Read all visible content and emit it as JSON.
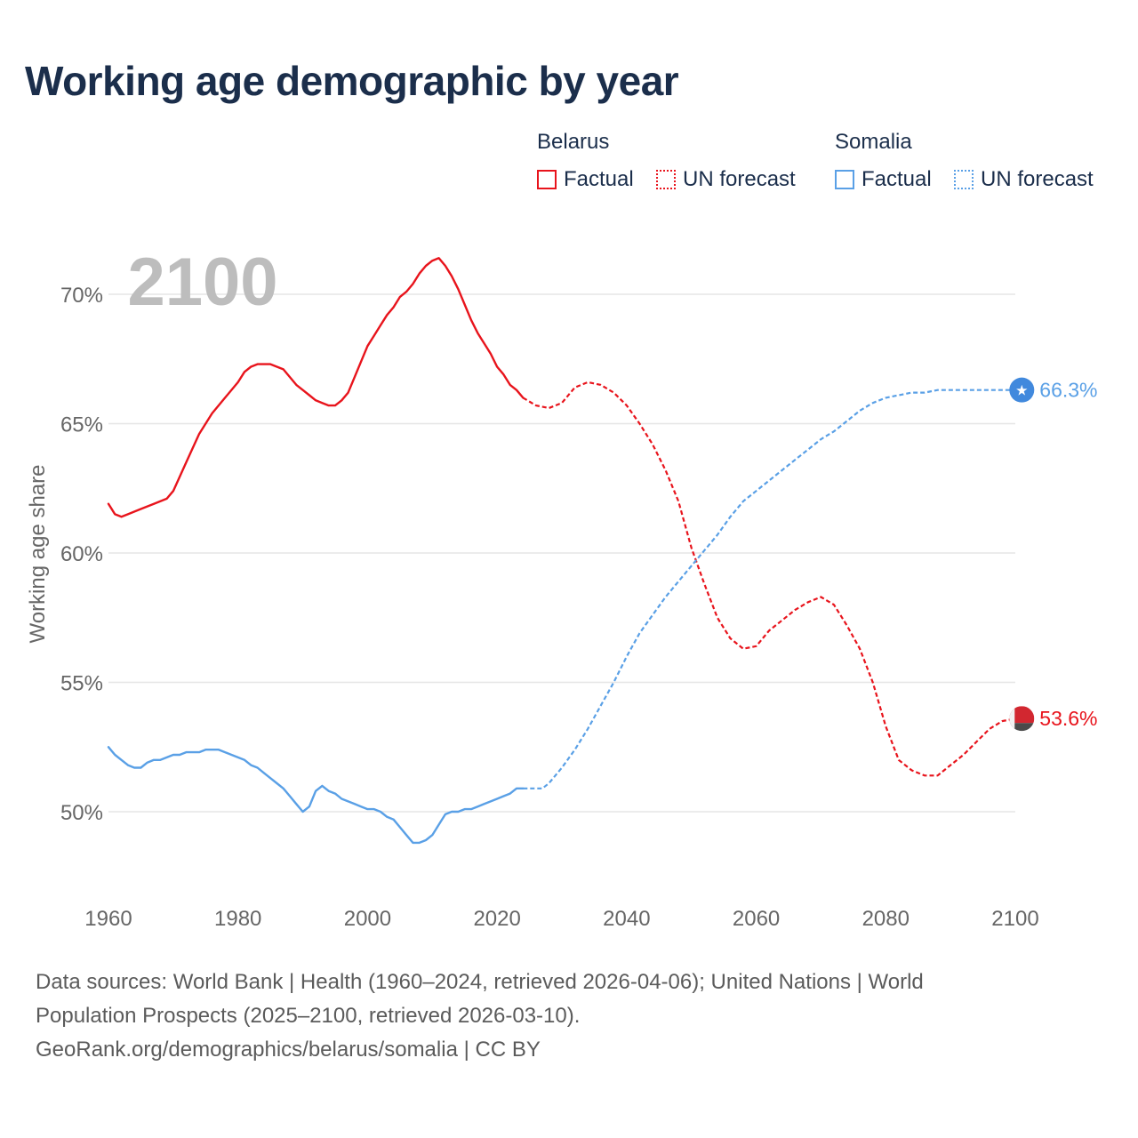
{
  "title": "Working age demographic by year",
  "legend": {
    "groups": [
      {
        "name": "Belarus",
        "color": "#e8141c",
        "factual_label": "Factual",
        "forecast_label": "UN forecast"
      },
      {
        "name": "Somalia",
        "color": "#5aa0e6",
        "factual_label": "Factual",
        "forecast_label": "UN forecast"
      }
    ]
  },
  "footer": {
    "line1": "Data sources: World Bank | Health (1960–2024, retrieved 2026-04-06); United Nations | World",
    "line2": "Population Prospects (2025–2100, retrieved 2026-03-10).",
    "line3": "GeoRank.org/demographics/belarus/somalia | CC BY"
  },
  "colors": {
    "title": "#1b2e4b",
    "belarus": "#e8141c",
    "somalia": "#5aa0e6",
    "year_watermark": "#bdbdbd",
    "grid": "#e6e6e6",
    "axis_text": "#666666"
  },
  "chart_data": {
    "type": "line",
    "title": "Working age demographic by year",
    "ylabel": "Working age share",
    "xlabel": "",
    "year_label": "2100",
    "xlim": [
      1960,
      2100
    ],
    "ylim": [
      47.5,
      72.5
    ],
    "x_ticks": [
      1960,
      1980,
      2000,
      2020,
      2040,
      2060,
      2080,
      2100
    ],
    "y_ticks": [
      50,
      55,
      60,
      65,
      70
    ],
    "y_tick_labels": [
      "50%",
      "55%",
      "60%",
      "65%",
      "70%"
    ],
    "grid": true,
    "series": [
      {
        "name": "Belarus",
        "color": "#e8141c",
        "end_label": "53.6%",
        "factual": {
          "x": [
            1960,
            1961,
            1962,
            1963,
            1965,
            1967,
            1969,
            1970,
            1972,
            1974,
            1976,
            1978,
            1980,
            1981,
            1982,
            1983,
            1984,
            1985,
            1986,
            1987,
            1988,
            1989,
            1990,
            1991,
            1992,
            1993,
            1994,
            1995,
            1996,
            1997,
            1998,
            1999,
            2000,
            2001,
            2002,
            2003,
            2004,
            2005,
            2006,
            2007,
            2008,
            2009,
            2010,
            2011,
            2012,
            2013,
            2014,
            2015,
            2016,
            2017,
            2018,
            2019,
            2020,
            2021,
            2022,
            2023,
            2024
          ],
          "y": [
            61.9,
            61.5,
            61.4,
            61.5,
            61.7,
            61.9,
            62.1,
            62.4,
            63.5,
            64.6,
            65.4,
            66.0,
            66.6,
            67.0,
            67.2,
            67.3,
            67.3,
            67.3,
            67.2,
            67.1,
            66.8,
            66.5,
            66.3,
            66.1,
            65.9,
            65.8,
            65.7,
            65.7,
            65.9,
            66.2,
            66.8,
            67.4,
            68.0,
            68.4,
            68.8,
            69.2,
            69.5,
            69.9,
            70.1,
            70.4,
            70.8,
            71.1,
            71.3,
            71.4,
            71.1,
            70.7,
            70.2,
            69.6,
            69.0,
            68.5,
            68.1,
            67.7,
            67.2,
            66.9,
            66.5,
            66.3,
            66.0
          ]
        },
        "forecast": {
          "x": [
            2024,
            2026,
            2028,
            2030,
            2032,
            2034,
            2036,
            2038,
            2040,
            2042,
            2044,
            2046,
            2048,
            2050,
            2052,
            2054,
            2056,
            2058,
            2060,
            2062,
            2064,
            2066,
            2068,
            2070,
            2072,
            2074,
            2076,
            2078,
            2080,
            2082,
            2084,
            2086,
            2088,
            2090,
            2092,
            2094,
            2096,
            2098,
            2100,
            2101
          ],
          "y": [
            66.0,
            65.7,
            65.6,
            65.8,
            66.4,
            66.6,
            66.5,
            66.2,
            65.7,
            65.0,
            64.2,
            63.2,
            62.0,
            60.2,
            58.8,
            57.5,
            56.7,
            56.3,
            56.4,
            57.0,
            57.4,
            57.8,
            58.1,
            58.3,
            58.0,
            57.2,
            56.3,
            55.0,
            53.3,
            52.0,
            51.6,
            51.4,
            51.4,
            51.8,
            52.2,
            52.7,
            53.2,
            53.5,
            53.6,
            53.6
          ]
        }
      },
      {
        "name": "Somalia",
        "color": "#5aa0e6",
        "end_label": "66.3%",
        "factual": {
          "x": [
            1960,
            1961,
            1962,
            1963,
            1964,
            1965,
            1966,
            1967,
            1968,
            1969,
            1970,
            1971,
            1972,
            1973,
            1974,
            1975,
            1976,
            1977,
            1978,
            1979,
            1980,
            1981,
            1982,
            1983,
            1984,
            1985,
            1986,
            1987,
            1988,
            1989,
            1990,
            1991,
            1992,
            1993,
            1994,
            1995,
            1996,
            1997,
            1998,
            1999,
            2000,
            2001,
            2002,
            2003,
            2004,
            2005,
            2006,
            2007,
            2008,
            2009,
            2010,
            2011,
            2012,
            2013,
            2014,
            2015,
            2016,
            2017,
            2018,
            2019,
            2020,
            2021,
            2022,
            2023,
            2024
          ],
          "y": [
            52.5,
            52.2,
            52.0,
            51.8,
            51.7,
            51.7,
            51.9,
            52.0,
            52.0,
            52.1,
            52.2,
            52.2,
            52.3,
            52.3,
            52.3,
            52.4,
            52.4,
            52.4,
            52.3,
            52.2,
            52.1,
            52.0,
            51.8,
            51.7,
            51.5,
            51.3,
            51.1,
            50.9,
            50.6,
            50.3,
            50.0,
            50.2,
            50.8,
            51.0,
            50.8,
            50.7,
            50.5,
            50.4,
            50.3,
            50.2,
            50.1,
            50.1,
            50.0,
            49.8,
            49.7,
            49.4,
            49.1,
            48.8,
            48.8,
            48.9,
            49.1,
            49.5,
            49.9,
            50.0,
            50.0,
            50.1,
            50.1,
            50.2,
            50.3,
            50.4,
            50.5,
            50.6,
            50.7,
            50.9,
            50.9
          ]
        },
        "forecast": {
          "x": [
            2024,
            2026,
            2027,
            2028,
            2030,
            2032,
            2034,
            2036,
            2038,
            2040,
            2042,
            2044,
            2046,
            2048,
            2050,
            2052,
            2054,
            2056,
            2058,
            2060,
            2062,
            2064,
            2066,
            2068,
            2070,
            2072,
            2074,
            2076,
            2078,
            2080,
            2082,
            2084,
            2086,
            2088,
            2090,
            2092,
            2094,
            2096,
            2098,
            2100,
            2101
          ],
          "y": [
            50.9,
            50.9,
            50.9,
            51.1,
            51.7,
            52.4,
            53.2,
            54.1,
            55.0,
            56.0,
            56.9,
            57.6,
            58.3,
            58.9,
            59.5,
            60.1,
            60.7,
            61.4,
            62.0,
            62.4,
            62.8,
            63.2,
            63.6,
            64.0,
            64.4,
            64.7,
            65.1,
            65.5,
            65.8,
            66.0,
            66.1,
            66.2,
            66.2,
            66.3,
            66.3,
            66.3,
            66.3,
            66.3,
            66.3,
            66.3,
            66.3
          ]
        }
      }
    ]
  }
}
